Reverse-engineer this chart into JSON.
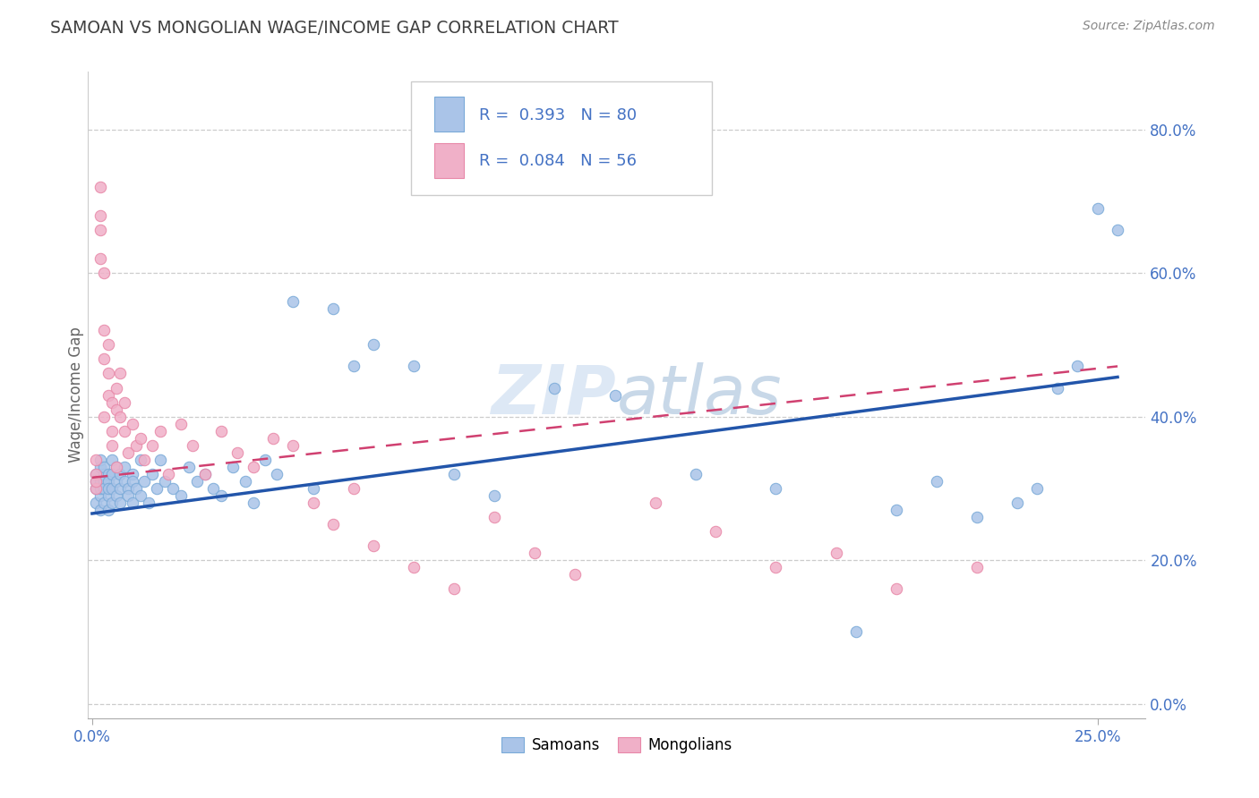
{
  "title": "SAMOAN VS MONGOLIAN WAGE/INCOME GAP CORRELATION CHART",
  "source": "Source: ZipAtlas.com",
  "ylim": [
    -0.02,
    0.88
  ],
  "xlim": [
    -0.001,
    0.262
  ],
  "ylabel_ticks": [
    0.0,
    0.2,
    0.4,
    0.6,
    0.8
  ],
  "samoans_R": 0.393,
  "samoans_N": 80,
  "mongolians_R": 0.084,
  "mongolians_N": 56,
  "samoans_color": "#aac4e8",
  "mongolians_color": "#f0b0c8",
  "samoans_edge_color": "#7aaad8",
  "mongolians_edge_color": "#e888a8",
  "samoans_line_color": "#2255aa",
  "mongolians_line_color": "#d04070",
  "background_color": "#ffffff",
  "grid_color": "#cccccc",
  "title_color": "#404040",
  "axis_label_color": "#4472c4",
  "watermark_color": "#dde8f5",
  "ylabel": "Wage/Income Gap",
  "samoans_x": [
    0.001,
    0.001,
    0.001,
    0.001,
    0.002,
    0.002,
    0.002,
    0.002,
    0.002,
    0.002,
    0.003,
    0.003,
    0.003,
    0.003,
    0.003,
    0.004,
    0.004,
    0.004,
    0.004,
    0.004,
    0.005,
    0.005,
    0.005,
    0.005,
    0.006,
    0.006,
    0.006,
    0.007,
    0.007,
    0.007,
    0.008,
    0.008,
    0.009,
    0.009,
    0.01,
    0.01,
    0.01,
    0.011,
    0.012,
    0.012,
    0.013,
    0.014,
    0.015,
    0.016,
    0.017,
    0.018,
    0.02,
    0.022,
    0.024,
    0.026,
    0.028,
    0.03,
    0.032,
    0.035,
    0.038,
    0.04,
    0.043,
    0.046,
    0.05,
    0.055,
    0.06,
    0.065,
    0.07,
    0.08,
    0.09,
    0.1,
    0.115,
    0.13,
    0.15,
    0.17,
    0.19,
    0.2,
    0.21,
    0.22,
    0.23,
    0.235,
    0.24,
    0.245,
    0.25,
    0.255
  ],
  "samoans_y": [
    0.3,
    0.32,
    0.28,
    0.31,
    0.33,
    0.29,
    0.31,
    0.27,
    0.34,
    0.3,
    0.32,
    0.28,
    0.31,
    0.3,
    0.33,
    0.29,
    0.32,
    0.27,
    0.31,
    0.3,
    0.34,
    0.28,
    0.32,
    0.3,
    0.31,
    0.29,
    0.33,
    0.3,
    0.32,
    0.28,
    0.31,
    0.33,
    0.3,
    0.29,
    0.32,
    0.28,
    0.31,
    0.3,
    0.34,
    0.29,
    0.31,
    0.28,
    0.32,
    0.3,
    0.34,
    0.31,
    0.3,
    0.29,
    0.33,
    0.31,
    0.32,
    0.3,
    0.29,
    0.33,
    0.31,
    0.28,
    0.34,
    0.32,
    0.56,
    0.3,
    0.55,
    0.47,
    0.5,
    0.47,
    0.32,
    0.29,
    0.44,
    0.43,
    0.32,
    0.3,
    0.1,
    0.27,
    0.31,
    0.26,
    0.28,
    0.3,
    0.44,
    0.47,
    0.69,
    0.66
  ],
  "mongolians_x": [
    0.001,
    0.001,
    0.001,
    0.001,
    0.002,
    0.002,
    0.002,
    0.002,
    0.003,
    0.003,
    0.003,
    0.003,
    0.004,
    0.004,
    0.004,
    0.005,
    0.005,
    0.005,
    0.006,
    0.006,
    0.006,
    0.007,
    0.007,
    0.008,
    0.008,
    0.009,
    0.01,
    0.011,
    0.012,
    0.013,
    0.015,
    0.017,
    0.019,
    0.022,
    0.025,
    0.028,
    0.032,
    0.036,
    0.04,
    0.045,
    0.05,
    0.055,
    0.06,
    0.065,
    0.07,
    0.08,
    0.09,
    0.1,
    0.11,
    0.12,
    0.14,
    0.155,
    0.17,
    0.185,
    0.2,
    0.22
  ],
  "mongolians_y": [
    0.34,
    0.3,
    0.32,
    0.31,
    0.68,
    0.72,
    0.62,
    0.66,
    0.6,
    0.48,
    0.52,
    0.4,
    0.46,
    0.43,
    0.5,
    0.38,
    0.42,
    0.36,
    0.44,
    0.41,
    0.33,
    0.4,
    0.46,
    0.38,
    0.42,
    0.35,
    0.39,
    0.36,
    0.37,
    0.34,
    0.36,
    0.38,
    0.32,
    0.39,
    0.36,
    0.32,
    0.38,
    0.35,
    0.33,
    0.37,
    0.36,
    0.28,
    0.25,
    0.3,
    0.22,
    0.19,
    0.16,
    0.26,
    0.21,
    0.18,
    0.28,
    0.24,
    0.19,
    0.21,
    0.16,
    0.19
  ],
  "sam_line_x0": 0.0,
  "sam_line_y0": 0.265,
  "sam_line_x1": 0.255,
  "sam_line_y1": 0.455,
  "mon_line_x0": 0.0,
  "mon_line_y0": 0.315,
  "mon_line_x1": 0.255,
  "mon_line_y1": 0.47
}
